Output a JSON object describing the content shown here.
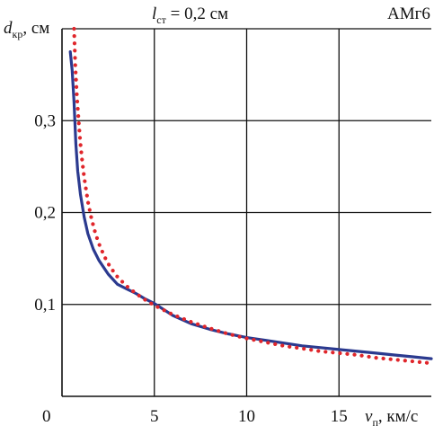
{
  "chart_data": {
    "type": "line",
    "title_var": "l",
    "title_sub": "ст",
    "title_rest": " = 0,2 см",
    "material": "АМг6",
    "ylabel_var": "d",
    "ylabel_sub": "кр",
    "ylabel_unit": ", см",
    "xlabel_var": "v",
    "xlabel_sub": "п",
    "xlabel_unit": ", км/с",
    "xlim": [
      0,
      20
    ],
    "ylim": [
      0,
      0.4
    ],
    "x_ticks": [
      {
        "value": 0,
        "label": "0"
      },
      {
        "value": 5,
        "label": "5"
      },
      {
        "value": 10,
        "label": "10"
      },
      {
        "value": 15,
        "label": "15"
      }
    ],
    "y_ticks": [
      {
        "value": 0.1,
        "label": "0,1"
      },
      {
        "value": 0.2,
        "label": "0,2"
      },
      {
        "value": 0.3,
        "label": "0,3"
      }
    ],
    "grid": true,
    "series": [
      {
        "style": "solid",
        "color": "#2b3a8f",
        "x": [
          0.45,
          0.55,
          0.65,
          0.75,
          0.85,
          1.0,
          1.2,
          1.4,
          1.7,
          2.0,
          2.5,
          3.0,
          3.5,
          4.0,
          4.5,
          5.0,
          6.0,
          7.0,
          8.0,
          9.0,
          10.0,
          11.0,
          12.0,
          13.0,
          14.0,
          15.0,
          16.0,
          17.0,
          18.0,
          19.0,
          20.0
        ],
        "y": [
          0.375,
          0.355,
          0.32,
          0.275,
          0.245,
          0.22,
          0.195,
          0.177,
          0.16,
          0.148,
          0.133,
          0.122,
          0.117,
          0.112,
          0.106,
          0.101,
          0.088,
          0.079,
          0.073,
          0.068,
          0.064,
          0.061,
          0.058,
          0.055,
          0.053,
          0.051,
          0.049,
          0.047,
          0.045,
          0.043,
          0.041
        ]
      },
      {
        "style": "dotted",
        "color": "#e0262b",
        "x": [
          0.65,
          0.72,
          0.8,
          0.9,
          1.0,
          1.1,
          1.2,
          1.4,
          1.6,
          1.8,
          2.0,
          2.3,
          2.6,
          3.0,
          3.5,
          4.0,
          4.5,
          5.0,
          5.5,
          6.0,
          7.0,
          8.0,
          9.0,
          10.0,
          11.0,
          12.0,
          13.0,
          14.0,
          15.0,
          16.0,
          17.0,
          18.0,
          19.0,
          20.0
        ],
        "y": [
          0.4,
          0.36,
          0.33,
          0.3,
          0.275,
          0.255,
          0.238,
          0.212,
          0.193,
          0.178,
          0.166,
          0.152,
          0.141,
          0.13,
          0.12,
          0.112,
          0.105,
          0.099,
          0.094,
          0.089,
          0.081,
          0.074,
          0.068,
          0.063,
          0.059,
          0.055,
          0.052,
          0.049,
          0.047,
          0.045,
          0.042,
          0.04,
          0.038,
          0.036
        ]
      }
    ]
  }
}
